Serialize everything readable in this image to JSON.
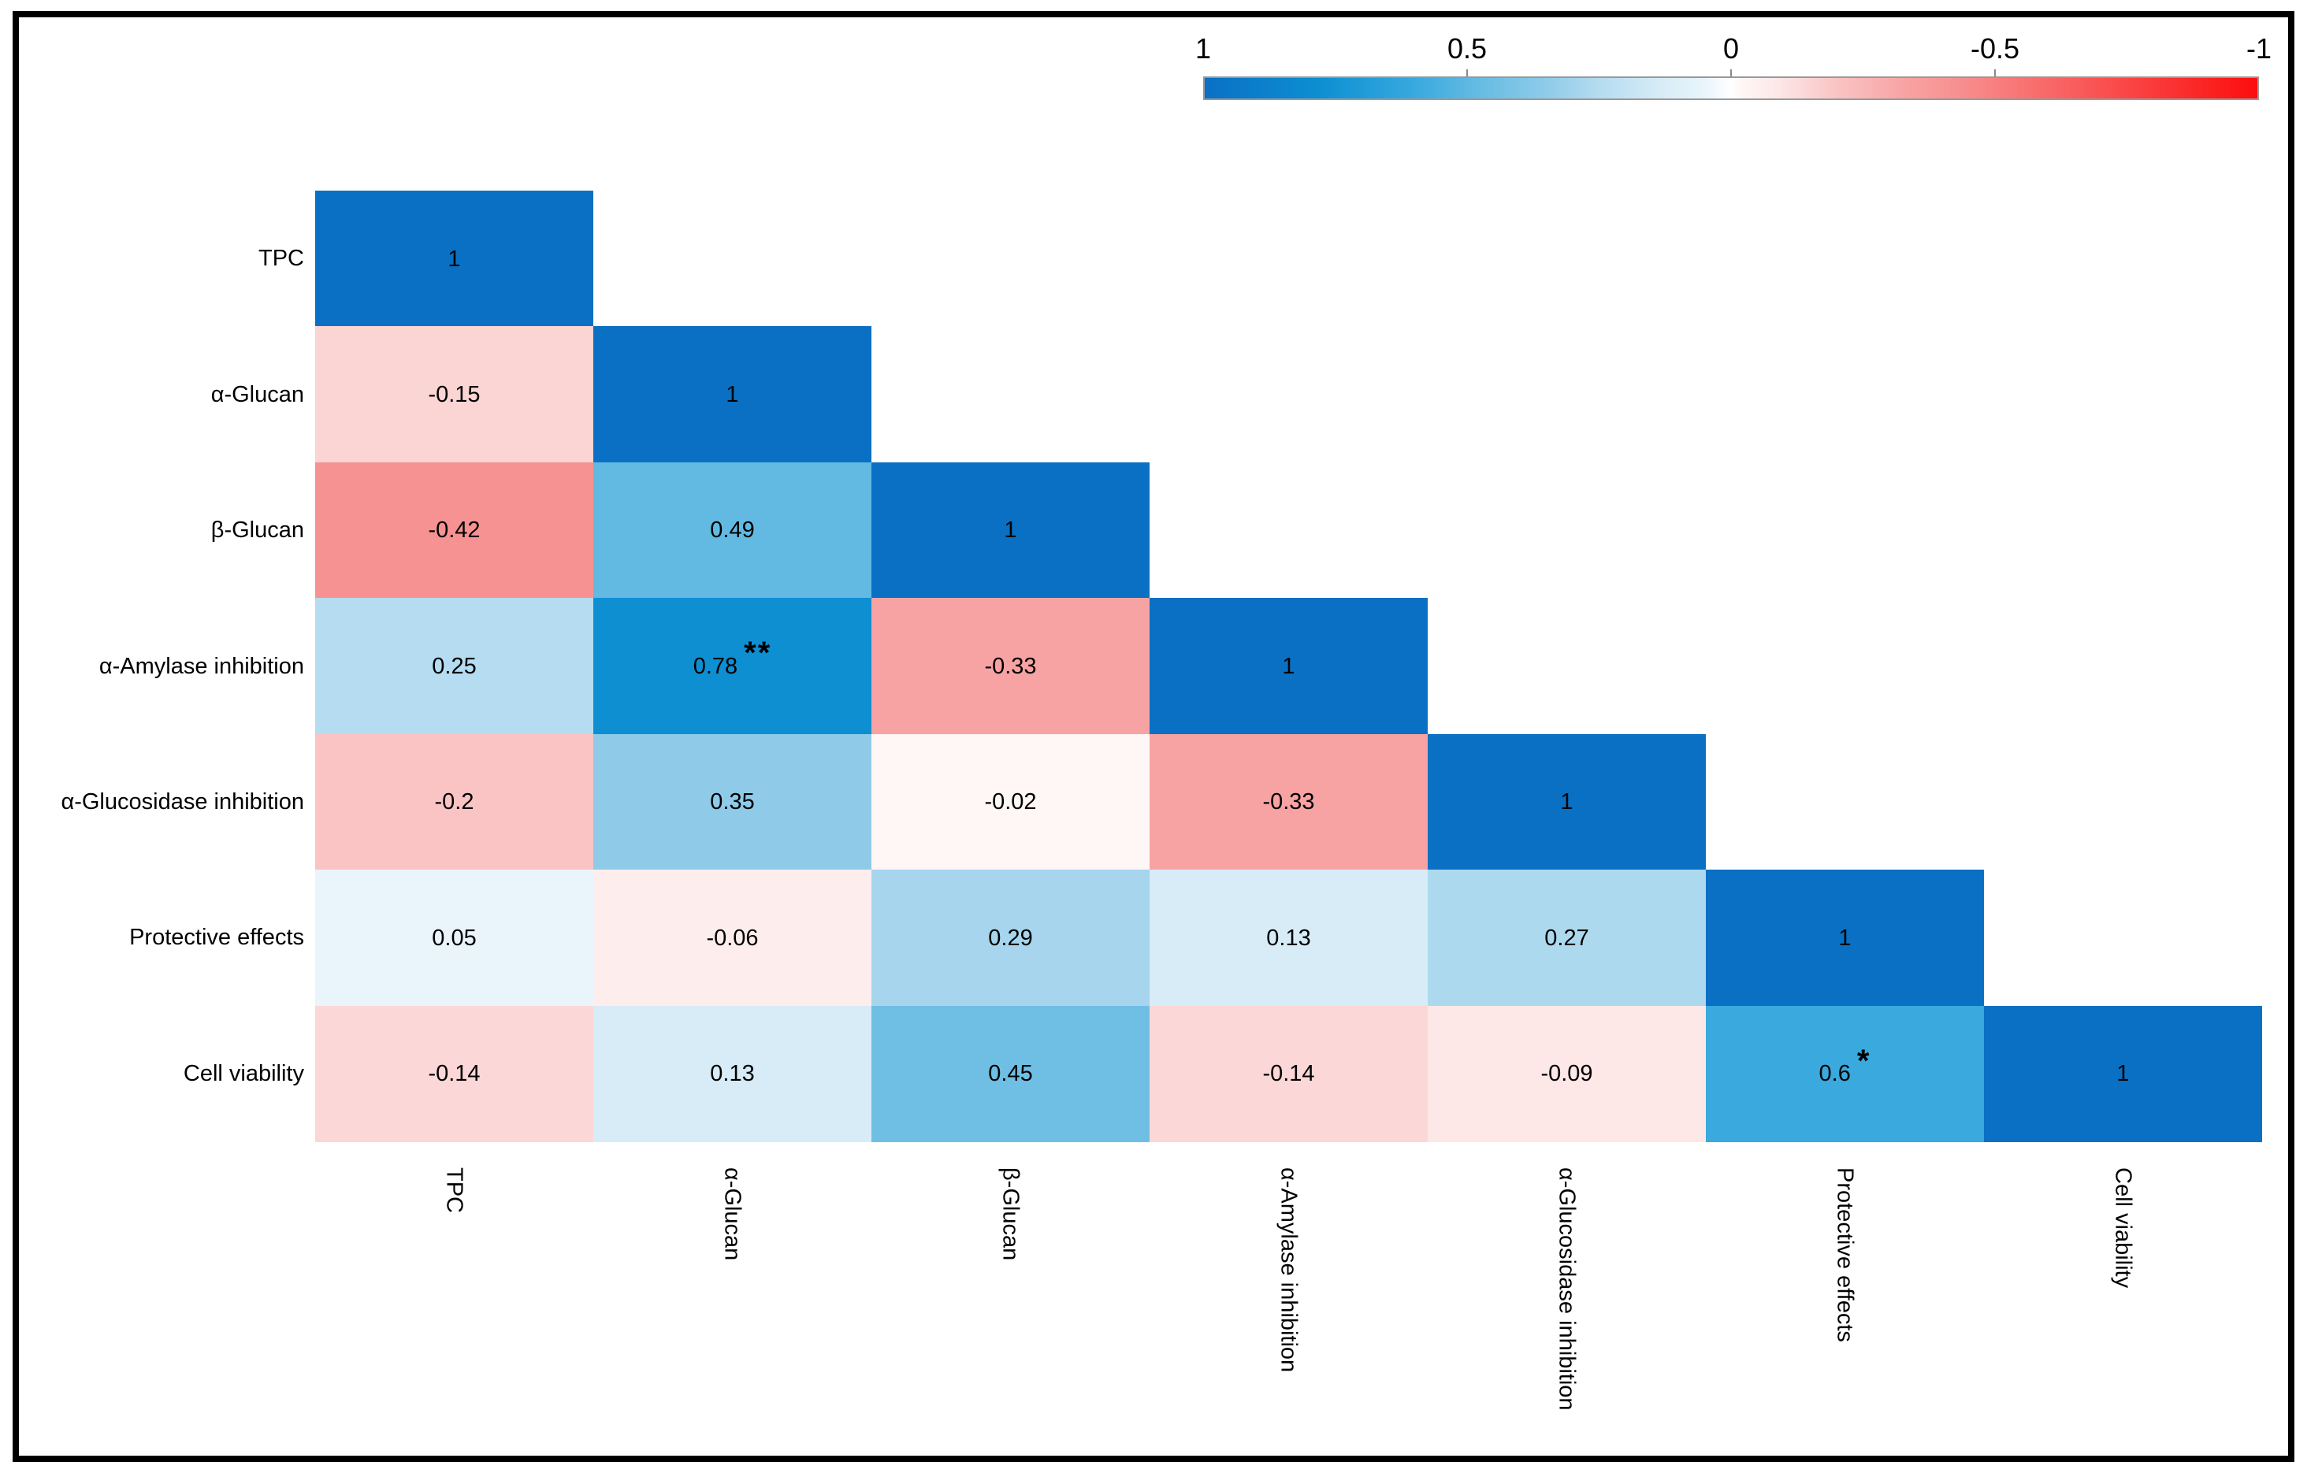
{
  "figure": {
    "background": "#ffffff",
    "frame_color": "#000000"
  },
  "chart_data": {
    "type": "heatmap",
    "subtype": "correlation-matrix-lower-triangle",
    "title": "",
    "xlabel": "",
    "ylabel": "",
    "grid": false,
    "legend_position": "top-right",
    "x_tick_rotation": 90,
    "variables": [
      "TPC",
      "α-Glucan",
      "β-Glucan",
      "α-Amylase inhibition",
      "α-Glucosidase inhibition",
      "Protective effects",
      "Cell viability"
    ],
    "cells": [
      {
        "row": "TPC",
        "col": "TPC",
        "value": 1,
        "label": "1",
        "sig": ""
      },
      {
        "row": "α-Glucan",
        "col": "TPC",
        "value": -0.15,
        "label": "-0.15",
        "sig": ""
      },
      {
        "row": "α-Glucan",
        "col": "α-Glucan",
        "value": 1,
        "label": "1",
        "sig": ""
      },
      {
        "row": "β-Glucan",
        "col": "TPC",
        "value": -0.42,
        "label": "-0.42",
        "sig": ""
      },
      {
        "row": "β-Glucan",
        "col": "α-Glucan",
        "value": 0.49,
        "label": "0.49",
        "sig": ""
      },
      {
        "row": "β-Glucan",
        "col": "β-Glucan",
        "value": 1,
        "label": "1",
        "sig": ""
      },
      {
        "row": "α-Amylase inhibition",
        "col": "TPC",
        "value": 0.25,
        "label": "0.25",
        "sig": ""
      },
      {
        "row": "α-Amylase inhibition",
        "col": "α-Glucan",
        "value": 0.78,
        "label": "0.78",
        "sig": "**"
      },
      {
        "row": "α-Amylase inhibition",
        "col": "β-Glucan",
        "value": -0.33,
        "label": "-0.33",
        "sig": ""
      },
      {
        "row": "α-Amylase inhibition",
        "col": "α-Amylase inhibition",
        "value": 1,
        "label": "1",
        "sig": ""
      },
      {
        "row": "α-Glucosidase inhibition",
        "col": "TPC",
        "value": -0.2,
        "label": "-0.2",
        "sig": ""
      },
      {
        "row": "α-Glucosidase inhibition",
        "col": "α-Glucan",
        "value": 0.35,
        "label": "0.35",
        "sig": ""
      },
      {
        "row": "α-Glucosidase inhibition",
        "col": "β-Glucan",
        "value": -0.02,
        "label": "-0.02",
        "sig": ""
      },
      {
        "row": "α-Glucosidase inhibition",
        "col": "α-Amylase inhibition",
        "value": -0.33,
        "label": "-0.33",
        "sig": ""
      },
      {
        "row": "α-Glucosidase inhibition",
        "col": "α-Glucosidase inhibition",
        "value": 1,
        "label": "1",
        "sig": ""
      },
      {
        "row": "Protective effects",
        "col": "TPC",
        "value": 0.05,
        "label": "0.05",
        "sig": ""
      },
      {
        "row": "Protective effects",
        "col": "α-Glucan",
        "value": -0.06,
        "label": "-0.06",
        "sig": ""
      },
      {
        "row": "Protective effects",
        "col": "β-Glucan",
        "value": 0.29,
        "label": "0.29",
        "sig": ""
      },
      {
        "row": "Protective effects",
        "col": "α-Amylase inhibition",
        "value": 0.13,
        "label": "0.13",
        "sig": ""
      },
      {
        "row": "Protective effects",
        "col": "α-Glucosidase inhibition",
        "value": 0.27,
        "label": "0.27",
        "sig": ""
      },
      {
        "row": "Protective effects",
        "col": "Protective effects",
        "value": 1,
        "label": "1",
        "sig": ""
      },
      {
        "row": "Cell viability",
        "col": "TPC",
        "value": -0.14,
        "label": "-0.14",
        "sig": ""
      },
      {
        "row": "Cell viability",
        "col": "α-Glucan",
        "value": 0.13,
        "label": "0.13",
        "sig": ""
      },
      {
        "row": "Cell viability",
        "col": "β-Glucan",
        "value": 0.45,
        "label": "0.45",
        "sig": ""
      },
      {
        "row": "Cell viability",
        "col": "α-Amylase inhibition",
        "value": -0.14,
        "label": "-0.14",
        "sig": ""
      },
      {
        "row": "Cell viability",
        "col": "α-Glucosidase inhibition",
        "value": -0.09,
        "label": "-0.09",
        "sig": ""
      },
      {
        "row": "Cell viability",
        "col": "Protective effects",
        "value": 0.6,
        "label": "0.6",
        "sig": "*"
      },
      {
        "row": "Cell viability",
        "col": "Cell viability",
        "value": 1,
        "label": "1",
        "sig": ""
      }
    ],
    "colorbar": {
      "orientation": "horizontal",
      "location": "top-right",
      "value_max": 1,
      "value_min": -1,
      "tick_labels": [
        "1",
        "0.5",
        "0",
        "-0.5",
        "-1"
      ],
      "tick_values": [
        1,
        0.5,
        0,
        -0.5,
        -1
      ],
      "border_color": "#999999",
      "tick_color": "#8a8a8a"
    },
    "color_scale": [
      {
        "value": 1,
        "color": "#0a70c4"
      },
      {
        "value": 0.78,
        "color": "#0d8fd2"
      },
      {
        "value": 0.6,
        "color": "#39a9de"
      },
      {
        "value": 0.49,
        "color": "#62bae2"
      },
      {
        "value": 0.35,
        "color": "#8fcbe9"
      },
      {
        "value": 0.25,
        "color": "#b5dcf0"
      },
      {
        "value": 0.13,
        "color": "#d8ecf7"
      },
      {
        "value": 0.05,
        "color": "#e9f5fb"
      },
      {
        "value": 0,
        "color": "#ffffff"
      },
      {
        "value": -0.02,
        "color": "#fef7f6"
      },
      {
        "value": -0.09,
        "color": "#fde7e7"
      },
      {
        "value": -0.15,
        "color": "#fbd4d4"
      },
      {
        "value": -0.2,
        "color": "#fac4c4"
      },
      {
        "value": -0.33,
        "color": "#f8a3a3"
      },
      {
        "value": -0.42,
        "color": "#f79292"
      },
      {
        "value": -1,
        "color": "#fc0d0d"
      }
    ]
  }
}
